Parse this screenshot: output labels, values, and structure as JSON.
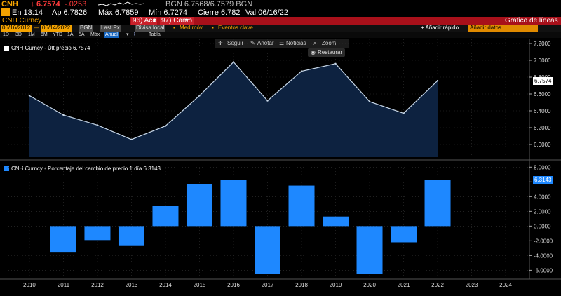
{
  "ticker": {
    "symbol": "CNH",
    "last": "6.7574",
    "change": "-.0253",
    "bid_ask": "BGN 6.7568/6.7579 BGN",
    "time": "En 13:14",
    "open": "Ap 6.7826",
    "high": "Máx 6.7859",
    "low": "Mín 6.7274",
    "close": "Cierre 6.782",
    "date": "Val 06/16/22"
  },
  "titlebar": {
    "security": "CNH Curncy",
    "actions": "96) Acc",
    "change_menu": "97) Camb",
    "chart_type": "Gráfico de líneas"
  },
  "controls": {
    "start_date": "06/16/2012",
    "end_date": "06/14/2022",
    "source": "BGN",
    "field": "Last Px",
    "currency": "Divisa local",
    "avg": "Med móv",
    "events": "Eventos clave",
    "quick_add": "+ Añadir rápido",
    "add_data": "Añadir datos"
  },
  "periods": {
    "items": [
      "1D",
      "3D",
      "1M",
      "6M",
      "YTD",
      "1A",
      "5A",
      "Máx"
    ],
    "frequency": "Anual",
    "table": "Tabla"
  },
  "toolbar": {
    "follow": "Seguir",
    "annotate": "Anotar",
    "news": "Noticias",
    "zoom": "Zoom",
    "restore": "Restaurar"
  },
  "chart_data": [
    {
      "type": "area",
      "legend": "CNH Curncy - Últ precio 6.7574",
      "last_label": "6.7574",
      "x": [
        2010,
        2011,
        2012,
        2013,
        2014,
        2015,
        2016,
        2017,
        2018,
        2019,
        2020,
        2021,
        2022
      ],
      "values": [
        6.58,
        6.35,
        6.23,
        6.06,
        6.22,
        6.58,
        6.98,
        6.52,
        6.87,
        6.96,
        6.51,
        6.37,
        6.7574
      ],
      "ylim": [
        5.85,
        7.25
      ],
      "yticks": [
        "7.2000",
        "7.0000",
        "6.8000",
        "6.6000",
        "6.4000",
        "6.2000",
        "6.0000"
      ],
      "ytick_values": [
        7.2,
        7.0,
        6.8,
        6.6,
        6.4,
        6.2,
        6.0
      ],
      "color": "#c7d7e8"
    },
    {
      "type": "bar",
      "legend": "CNH Curncy - Porcentaje del cambio de precio 1 día 6.3143",
      "last_label": "6.3143",
      "x": [
        2011,
        2012,
        2013,
        2014,
        2015,
        2016,
        2017,
        2018,
        2019,
        2020,
        2021,
        2022
      ],
      "values": [
        -3.5,
        -1.9,
        -2.7,
        2.7,
        5.7,
        6.3,
        -6.5,
        5.5,
        1.3,
        -6.5,
        -2.2,
        6.3143
      ],
      "ylim": [
        -7.2,
        8.6
      ],
      "yticks": [
        "8.0000",
        "6.0000",
        "4.0000",
        "2.0000",
        "0.0000",
        "-2.0000",
        "-4.0000",
        "-6.0000"
      ],
      "ytick_values": [
        8,
        6,
        4,
        2,
        0,
        -2,
        -4,
        -6
      ],
      "color": "#1e88ff"
    }
  ],
  "x_axis": {
    "labels": [
      "2010",
      "2011",
      "2012",
      "2013",
      "2014",
      "2015",
      "2016",
      "2017",
      "2018",
      "2019",
      "2020",
      "2021",
      "2022",
      "2023",
      "2024"
    ],
    "values": [
      2010,
      2011,
      2012,
      2013,
      2014,
      2015,
      2016,
      2017,
      2018,
      2019,
      2020,
      2021,
      2022,
      2023,
      2024
    ]
  },
  "colors": {
    "amber": "#f4a300",
    "bloomberg_red": "#a8101a",
    "area_fill": "#0d2240",
    "bar": "#1e88ff"
  }
}
